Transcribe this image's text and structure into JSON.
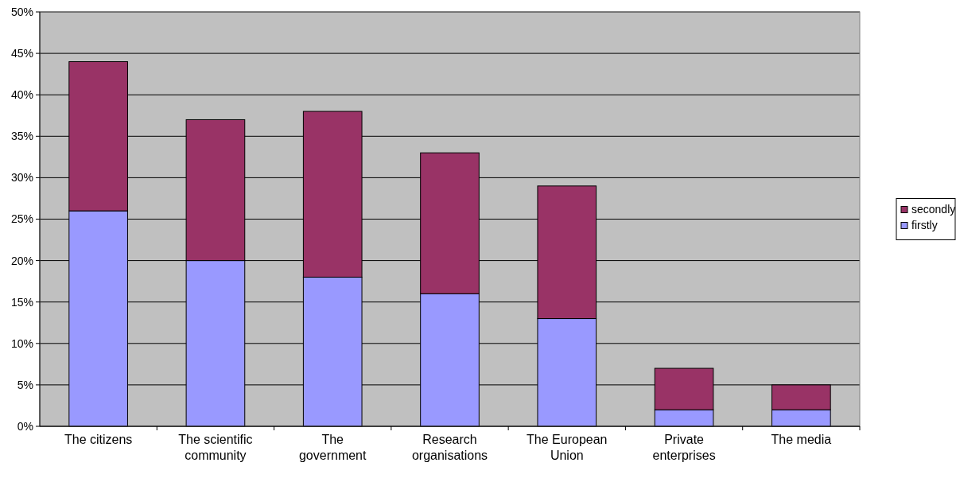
{
  "chart_data": {
    "type": "bar",
    "stacked": true,
    "categories": [
      "The citizens",
      "The scientific community",
      "The government",
      "Research organisations",
      "The European Union",
      "Private enterprises",
      "The media"
    ],
    "series": [
      {
        "name": "firstly",
        "color": "#9999ff",
        "values": [
          26,
          20,
          18,
          16,
          13,
          2,
          2
        ]
      },
      {
        "name": "secondly",
        "color": "#993366",
        "values": [
          18,
          17,
          20,
          17,
          16,
          5,
          3
        ]
      }
    ],
    "ylim": [
      0,
      50
    ],
    "yticks": [
      {
        "value": 0,
        "label": "0%"
      },
      {
        "value": 5,
        "label": "5%"
      },
      {
        "value": 10,
        "label": "10%"
      },
      {
        "value": 15,
        "label": "15%"
      },
      {
        "value": 20,
        "label": "20%"
      },
      {
        "value": 25,
        "label": "25%"
      },
      {
        "value": 30,
        "label": "30%"
      },
      {
        "value": 35,
        "label": "35%"
      },
      {
        "value": 40,
        "label": "40%"
      },
      {
        "value": 45,
        "label": "45%"
      },
      {
        "value": 50,
        "label": "50%"
      }
    ],
    "grid": "y",
    "legend": "right"
  }
}
